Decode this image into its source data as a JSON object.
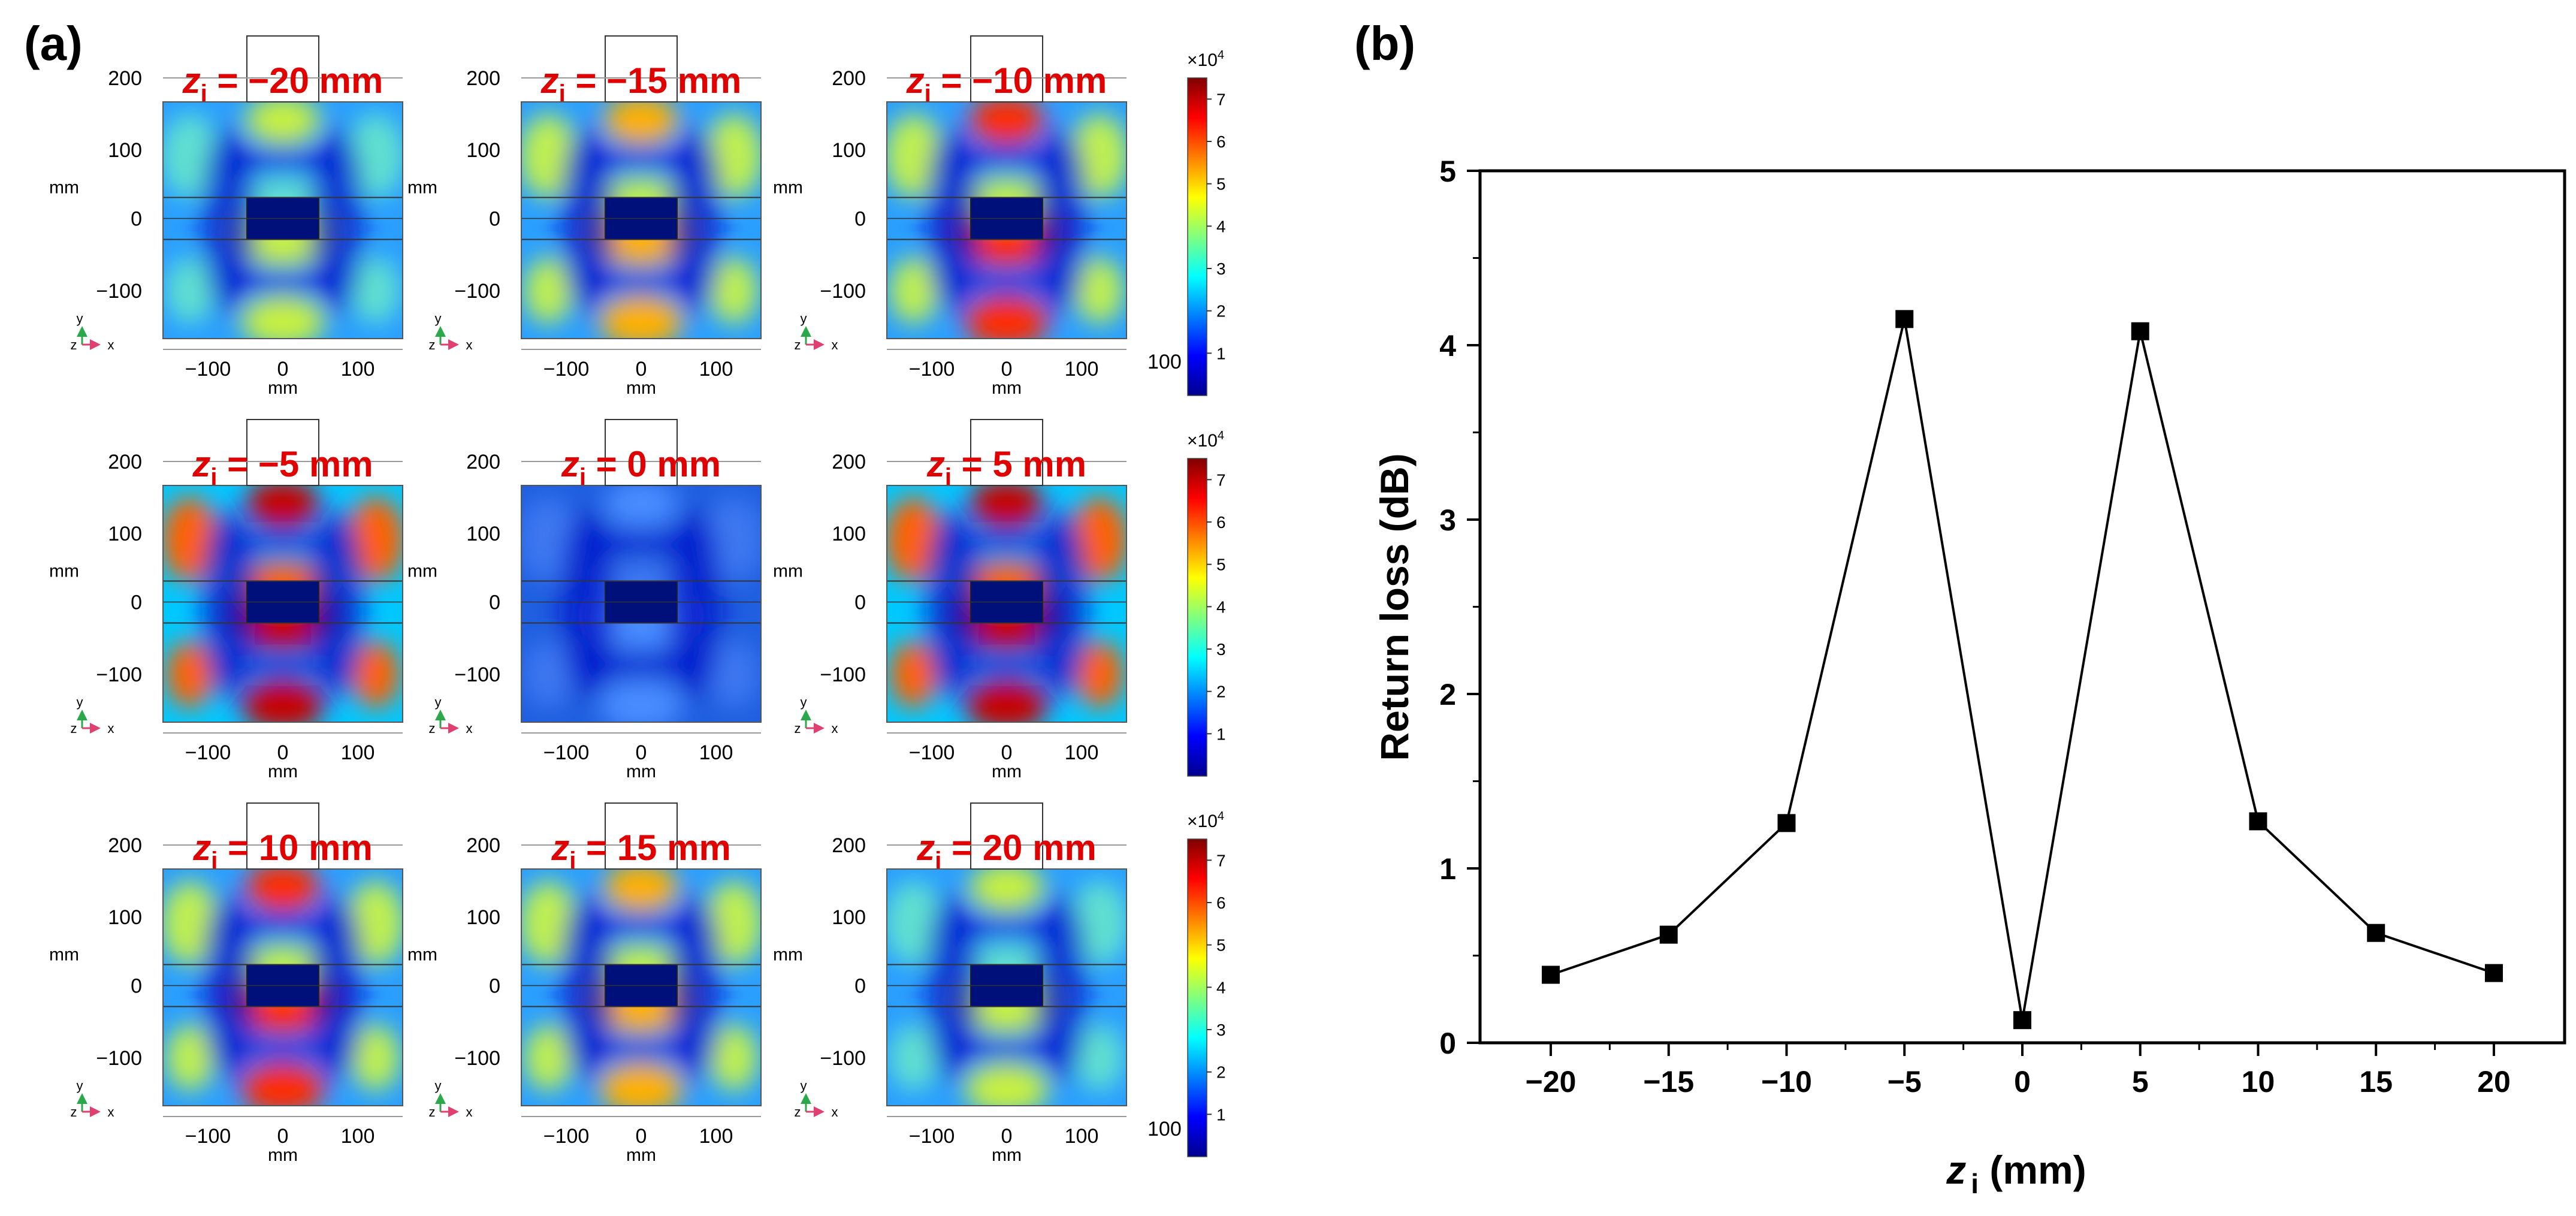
{
  "panel_a": {
    "label": "(a)",
    "axis_unit": "mm",
    "tick_labels_x": [
      "−100",
      "0",
      "100"
    ],
    "tick_labels_y": [
      "200",
      "100",
      "0",
      "−100"
    ],
    "extra_tick": "100",
    "triad_y": "y",
    "triad_z": "z",
    "triad_x": "x",
    "colorbar_multiplier": "×10",
    "colorbar_exponent": "4",
    "colorbar_ticks": [
      "1",
      "2",
      "3",
      "4",
      "5",
      "6",
      "7"
    ],
    "colorbar_range": [
      0,
      7.5
    ],
    "plots": [
      {
        "var": "z",
        "sub": "i",
        "label": " = −20 mm",
        "intensity": 0.5
      },
      {
        "var": "z",
        "sub": "i",
        "label": " = −15 mm",
        "intensity": 0.62
      },
      {
        "var": "z",
        "sub": "i",
        "label": " = −10 mm",
        "intensity": 0.82
      },
      {
        "var": "z",
        "sub": "i",
        "label": " = −5 mm",
        "intensity": 1.05
      },
      {
        "var": "z",
        "sub": "i",
        "label": " = 0 mm",
        "intensity": 0.14
      },
      {
        "var": "z",
        "sub": "i",
        "label": " = 5 mm",
        "intensity": 1.05
      },
      {
        "var": "z",
        "sub": "i",
        "label": " = 10 mm",
        "intensity": 0.82
      },
      {
        "var": "z",
        "sub": "i",
        "label": " = 15 mm",
        "intensity": 0.62
      },
      {
        "var": "z",
        "sub": "i",
        "label": " = 20 mm",
        "intensity": 0.5
      }
    ]
  },
  "chart_data": {
    "type": "line",
    "panel_label": "(b)",
    "title": "",
    "xlabel_var": "z",
    "xlabel_sub": "i",
    "xlabel_unit": " (mm)",
    "ylabel": "Return loss (dB)",
    "x": [
      -20,
      -15,
      -10,
      -5,
      0,
      5,
      10,
      15,
      20
    ],
    "y": [
      0.39,
      0.62,
      1.26,
      4.15,
      0.13,
      4.08,
      1.27,
      0.63,
      0.4
    ],
    "xlim": [
      -23,
      23
    ],
    "ylim": [
      0,
      5
    ],
    "xticks": [
      -20,
      -15,
      -10,
      -5,
      0,
      5,
      10,
      15,
      20
    ],
    "xtick_labels": [
      "−20",
      "−15",
      "−10",
      "−5",
      "0",
      "5",
      "10",
      "15",
      "20"
    ],
    "yticks": [
      0,
      1,
      2,
      3,
      4,
      5
    ],
    "ytick_labels": [
      "0",
      "1",
      "2",
      "3",
      "4",
      "5"
    ],
    "grid": false,
    "marker": "square",
    "color": "#000000"
  }
}
